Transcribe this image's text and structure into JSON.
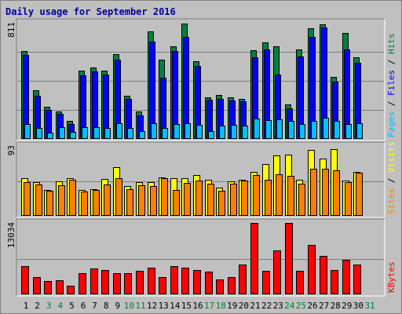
{
  "title": "Daily usage for September 2016",
  "chart_data": [
    {
      "type": "bar",
      "panel": "pages-files-hits",
      "ymax_label": "811",
      "ylim": [
        0,
        811
      ],
      "series": [
        {
          "name": "Hits",
          "color": "#008040",
          "values": [
            616,
            342,
            224,
            191,
            124,
            474,
            498,
            479,
            594,
            303,
            194,
            753,
            555,
            645,
            803,
            545,
            292,
            306,
            290,
            281,
            617,
            672,
            649,
            243,
            624,
            772,
            802,
            431,
            741,
            572
          ]
        },
        {
          "name": "Files",
          "color": "#0000ff",
          "values": [
            588,
            302,
            201,
            175,
            103,
            443,
            471,
            449,
            555,
            279,
            166,
            679,
            427,
            611,
            710,
            509,
            272,
            278,
            271,
            262,
            568,
            625,
            451,
            214,
            578,
            713,
            776,
            399,
            624,
            534
          ]
        },
        {
          "name": "Pages",
          "color": "#00c0ff",
          "values": [
            102,
            76,
            46,
            80,
            51,
            84,
            80,
            78,
            107,
            77,
            57,
            107,
            79,
            103,
            109,
            96,
            53,
            93,
            101,
            94,
            143,
            130,
            139,
            124,
            106,
            125,
            148,
            124,
            106,
            107
          ]
        }
      ],
      "legend": [
        {
          "text": "Pages",
          "color": "#00c0ff"
        },
        {
          "text": " / ",
          "color": "#000000"
        },
        {
          "text": "Files",
          "color": "#0000ff"
        },
        {
          "text": " / ",
          "color": "#000000"
        },
        {
          "text": "Hits",
          "color": "#008040"
        }
      ]
    },
    {
      "type": "bar",
      "panel": "sites-visits",
      "ymax_label": "93",
      "ylim": [
        0,
        93
      ],
      "series": [
        {
          "name": "Visits",
          "color": "#ffff00",
          "values": [
            50,
            45,
            34,
            46,
            50,
            34,
            36,
            49,
            65,
            40,
            45,
            45,
            51,
            50,
            50,
            54,
            48,
            38,
            46,
            48,
            58,
            69,
            80,
            82,
            48,
            88,
            76,
            89,
            47,
            59
          ]
        },
        {
          "name": "Sites",
          "color": "#ff8000",
          "values": [
            45,
            42,
            33,
            41,
            48,
            32,
            35,
            42,
            50,
            36,
            41,
            40,
            50,
            34,
            44,
            47,
            43,
            33,
            43,
            47,
            54,
            48,
            55,
            53,
            43,
            63,
            63,
            61,
            45,
            57
          ]
        }
      ],
      "legend": [
        {
          "text": "Sites",
          "color": "#ff8000"
        },
        {
          "text": " / ",
          "color": "#000000"
        },
        {
          "text": "Visits",
          "color": "#ffff00"
        }
      ]
    },
    {
      "type": "bar",
      "panel": "kbytes",
      "ymax_label": "13034",
      "ylim": [
        0,
        13034
      ],
      "series": [
        {
          "name": "KBytes",
          "color": "#ff0000",
          "values": [
            5200,
            3088,
            2413,
            2509,
            1525,
            3812,
            4729,
            4440,
            3812,
            3860,
            4247,
            4923,
            3185,
            5193,
            4923,
            4392,
            4150,
            2702,
            3185,
            5483,
            13034,
            4247,
            8005,
            13034,
            4344,
            8970,
            7040,
            4440,
            6268,
            5483
          ]
        }
      ],
      "legend": [
        {
          "text": "KBytes",
          "color": "#ff0000"
        }
      ]
    }
  ],
  "x_axis": {
    "days": [
      "1",
      "2",
      "3",
      "4",
      "5",
      "6",
      "7",
      "8",
      "9",
      "10",
      "11",
      "12",
      "13",
      "14",
      "15",
      "16",
      "17",
      "18",
      "19",
      "20",
      "21",
      "22",
      "23",
      "24",
      "25",
      "26",
      "27",
      "28",
      "29",
      "30",
      "31"
    ],
    "weekend": [
      false,
      false,
      true,
      true,
      false,
      false,
      false,
      false,
      false,
      true,
      true,
      false,
      false,
      false,
      false,
      false,
      true,
      true,
      false,
      false,
      false,
      false,
      false,
      true,
      true,
      false,
      false,
      false,
      false,
      false,
      true
    ],
    "color_weekday": "#000000",
    "color_weekend": "#008040"
  }
}
